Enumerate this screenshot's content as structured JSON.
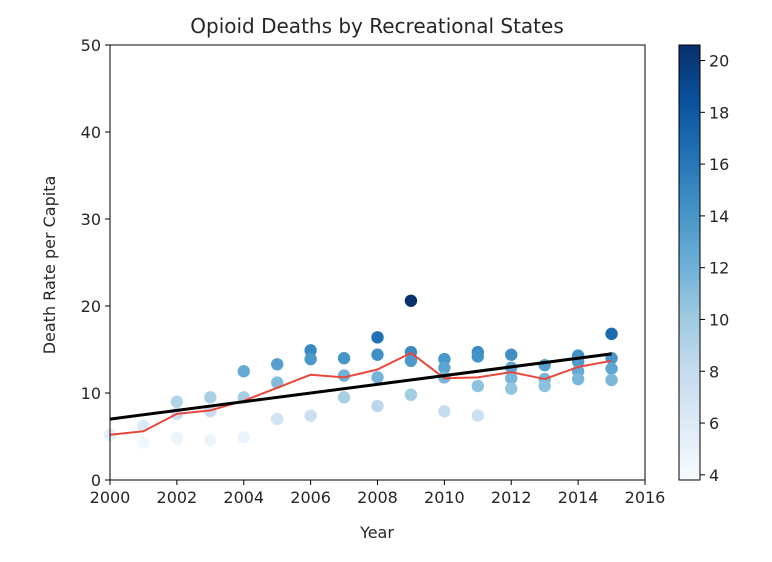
{
  "chart_data": {
    "type": "scatter",
    "title": "Opioid Deaths by Recreational States",
    "xlabel": "Year",
    "ylabel": "Death Rate per Capita",
    "xlim": [
      2000,
      2016
    ],
    "ylim": [
      0,
      50
    ],
    "xticks": [
      "2000",
      "2002",
      "2004",
      "2006",
      "2008",
      "2010",
      "2012",
      "2014",
      "2016"
    ],
    "yticks": [
      "0",
      "10",
      "20",
      "30",
      "40",
      "50"
    ],
    "grid": false,
    "colormap": "Blues",
    "colorbar": {
      "range": [
        3.8,
        20.6
      ],
      "ticks": [
        "4",
        "6",
        "8",
        "10",
        "12",
        "14",
        "16",
        "18",
        "20"
      ],
      "colors": [
        "#f7fbff",
        "#deebf7",
        "#c6dbef",
        "#9ecae1",
        "#6baed6",
        "#4292c6",
        "#2171b5",
        "#08519c",
        "#08306b"
      ]
    },
    "points": [
      {
        "x": 2000,
        "y": 5.2
      },
      {
        "x": 2001,
        "y": 6.2
      },
      {
        "x": 2001,
        "y": 4.3
      },
      {
        "x": 2002,
        "y": 9.0
      },
      {
        "x": 2002,
        "y": 7.6
      },
      {
        "x": 2002,
        "y": 4.8
      },
      {
        "x": 2003,
        "y": 9.5
      },
      {
        "x": 2003,
        "y": 7.9
      },
      {
        "x": 2003,
        "y": 4.6
      },
      {
        "x": 2004,
        "y": 12.5
      },
      {
        "x": 2004,
        "y": 9.5
      },
      {
        "x": 2004,
        "y": 4.9
      },
      {
        "x": 2005,
        "y": 13.3
      },
      {
        "x": 2005,
        "y": 11.2
      },
      {
        "x": 2005,
        "y": 7.0
      },
      {
        "x": 2006,
        "y": 14.9
      },
      {
        "x": 2006,
        "y": 13.9
      },
      {
        "x": 2006,
        "y": 7.4
      },
      {
        "x": 2007,
        "y": 14.0
      },
      {
        "x": 2007,
        "y": 12.0
      },
      {
        "x": 2007,
        "y": 9.5
      },
      {
        "x": 2008,
        "y": 16.4
      },
      {
        "x": 2008,
        "y": 14.4
      },
      {
        "x": 2008,
        "y": 11.8
      },
      {
        "x": 2008,
        "y": 8.5
      },
      {
        "x": 2009,
        "y": 20.6
      },
      {
        "x": 2009,
        "y": 14.7
      },
      {
        "x": 2009,
        "y": 13.7
      },
      {
        "x": 2009,
        "y": 9.8
      },
      {
        "x": 2010,
        "y": 13.9
      },
      {
        "x": 2010,
        "y": 12.9
      },
      {
        "x": 2010,
        "y": 11.8
      },
      {
        "x": 2010,
        "y": 7.9
      },
      {
        "x": 2011,
        "y": 14.7
      },
      {
        "x": 2011,
        "y": 14.2
      },
      {
        "x": 2011,
        "y": 10.8
      },
      {
        "x": 2011,
        "y": 7.4
      },
      {
        "x": 2012,
        "y": 14.4
      },
      {
        "x": 2012,
        "y": 12.9
      },
      {
        "x": 2012,
        "y": 11.7
      },
      {
        "x": 2012,
        "y": 10.5
      },
      {
        "x": 2013,
        "y": 13.2
      },
      {
        "x": 2013,
        "y": 11.6
      },
      {
        "x": 2013,
        "y": 10.8
      },
      {
        "x": 2014,
        "y": 14.3
      },
      {
        "x": 2014,
        "y": 13.6
      },
      {
        "x": 2014,
        "y": 12.5
      },
      {
        "x": 2014,
        "y": 11.6
      },
      {
        "x": 2015,
        "y": 16.8
      },
      {
        "x": 2015,
        "y": 14.0
      },
      {
        "x": 2015,
        "y": 12.8
      },
      {
        "x": 2015,
        "y": 11.5
      }
    ],
    "series": [
      {
        "color": "#e8483c",
        "x": [
          2000,
          2001,
          2002,
          2003,
          2004,
          2005,
          2006,
          2007,
          2008,
          2009,
          2010,
          2011,
          2012,
          2013,
          2014,
          2015
        ],
        "values": [
          5.2,
          5.6,
          7.6,
          8.0,
          9.1,
          10.6,
          12.1,
          11.8,
          12.7,
          14.6,
          11.7,
          11.8,
          12.4,
          11.6,
          13.0,
          13.7
        ]
      },
      {
        "color": "#000000",
        "x": [
          2000,
          2015
        ],
        "values": [
          7.0,
          14.5
        ]
      }
    ]
  }
}
